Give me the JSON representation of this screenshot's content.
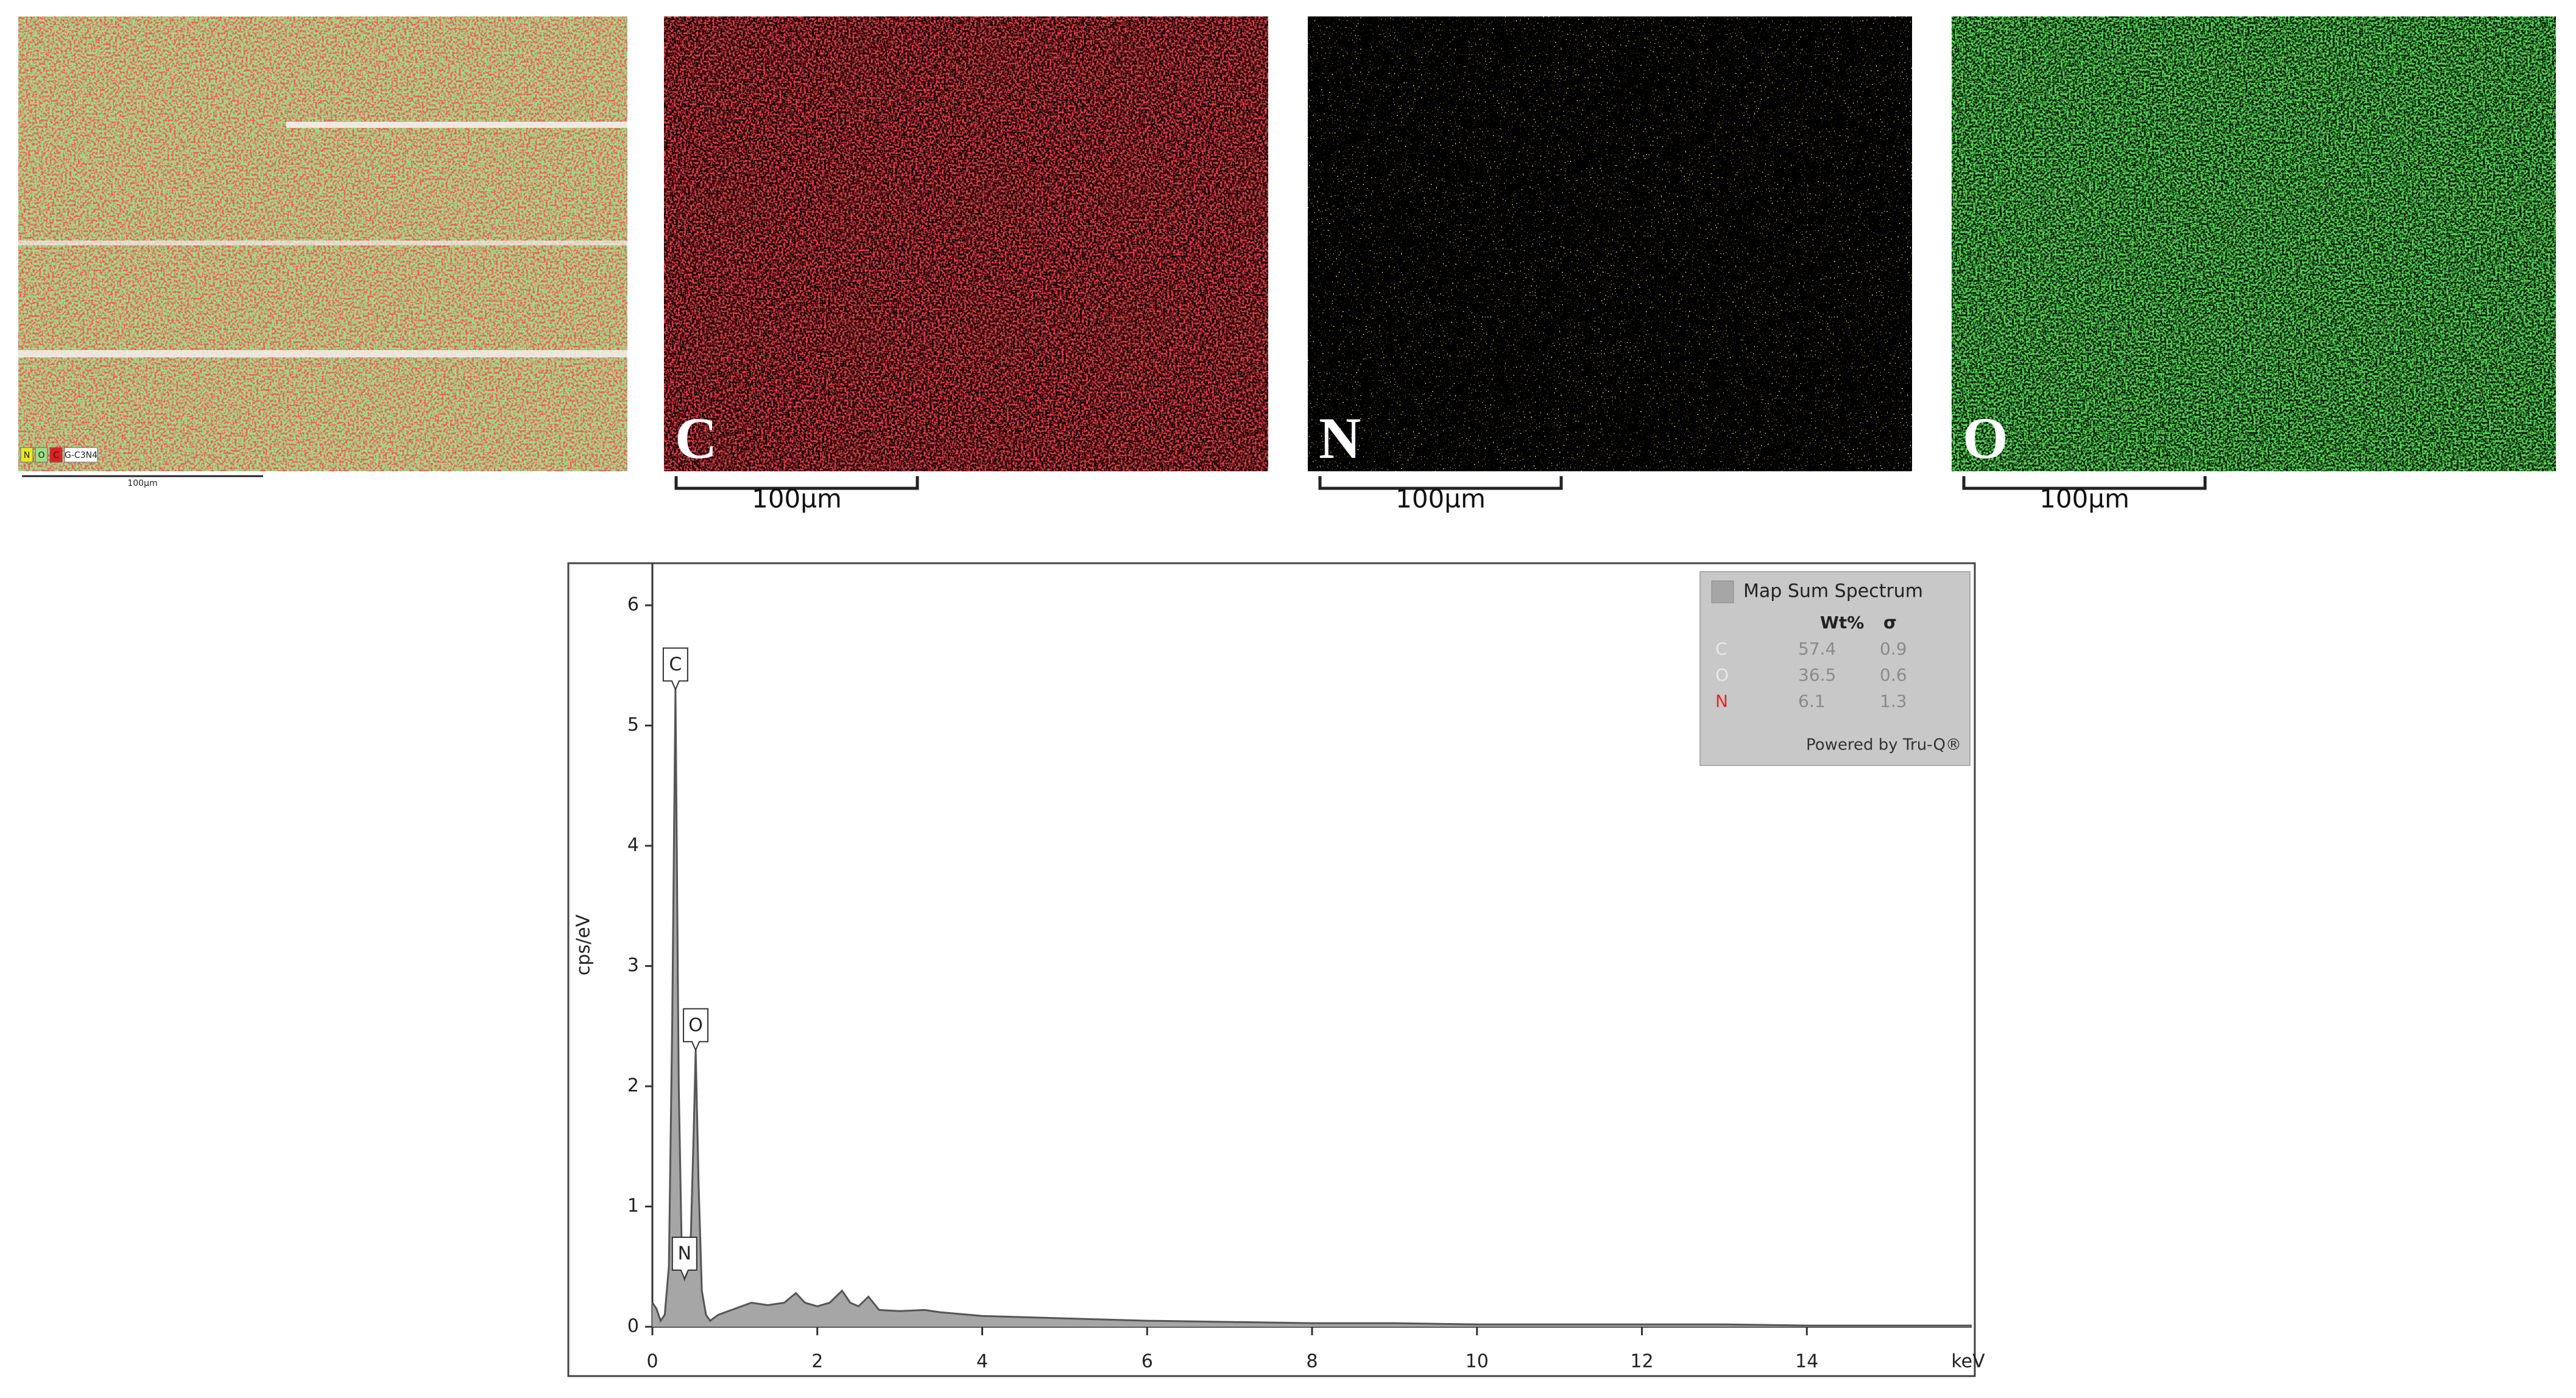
{
  "maps": [
    {
      "element": null,
      "scale_bar": "100µm",
      "legend": [
        "N",
        "O",
        "C",
        "G-C3N4"
      ]
    },
    {
      "element": "C",
      "scale_bar": "100µm"
    },
    {
      "element": "N",
      "scale_bar": "100µm"
    },
    {
      "element": "O",
      "scale_bar": "100µm"
    }
  ],
  "chart_data": {
    "type": "area",
    "name": "Map Sum Spectrum",
    "color": "#a6a6a6",
    "x_label": "keV",
    "y_label": "cps/eV",
    "x": [
      0,
      0.05,
      0.1,
      0.15,
      0.2,
      0.24,
      0.28,
      0.32,
      0.36,
      0.39,
      0.42,
      0.46,
      0.5,
      0.525,
      0.56,
      0.6,
      0.65,
      0.7,
      0.8,
      1.0,
      1.2,
      1.4,
      1.6,
      1.74,
      1.85,
      2.0,
      2.15,
      2.3,
      2.4,
      2.5,
      2.62,
      2.75,
      3.0,
      3.3,
      3.5,
      4,
      5,
      6,
      7,
      8,
      9,
      10,
      11,
      12,
      13,
      14,
      15,
      16
    ],
    "values": [
      0.2,
      0.15,
      0.05,
      0.1,
      0.5,
      2.5,
      5.3,
      2.0,
      0.5,
      0.4,
      0.45,
      0.6,
      1.6,
      2.3,
      1.2,
      0.3,
      0.1,
      0.05,
      0.1,
      0.15,
      0.2,
      0.18,
      0.2,
      0.28,
      0.2,
      0.17,
      0.2,
      0.3,
      0.2,
      0.17,
      0.25,
      0.14,
      0.13,
      0.14,
      0.12,
      0.09,
      0.07,
      0.05,
      0.04,
      0.03,
      0.03,
      0.02,
      0.02,
      0.02,
      0.02,
      0.01,
      0.01,
      0.01
    ],
    "xlim": [
      0,
      16
    ],
    "ylim": [
      0,
      6.35
    ],
    "xticks": [
      0,
      2,
      4,
      6,
      8,
      10,
      12,
      14
    ],
    "yticks": [
      0,
      1,
      2,
      3,
      4,
      5,
      6
    ],
    "peak_labels": [
      {
        "label": "C",
        "x": 0.28,
        "y": 5.3
      },
      {
        "label": "O",
        "x": 0.525,
        "y": 2.3
      },
      {
        "label": "N",
        "x": 0.39,
        "y": 0.4
      }
    ],
    "quant_table": {
      "headers": [
        "Wt%",
        "σ"
      ],
      "rows": [
        {
          "element": "C",
          "wt": 57.4,
          "sigma": 0.9,
          "color": "#e8e8e8"
        },
        {
          "element": "O",
          "wt": 36.5,
          "sigma": 0.6,
          "color": "#e8e8e8"
        },
        {
          "element": "N",
          "wt": 6.1,
          "sigma": 1.3,
          "color": "#e0282e"
        }
      ],
      "footer": "Powered by Tru-Q®"
    }
  }
}
